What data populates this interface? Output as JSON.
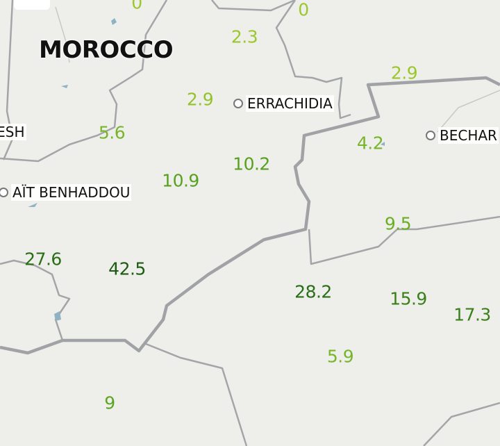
{
  "map": {
    "country_label": "MOROCCO",
    "cities": [
      {
        "name": "ERRACHIDIA"
      },
      {
        "name": "BECHAR"
      },
      {
        "name": "AÏT BENHADDOU"
      },
      {
        "name": "KESH"
      }
    ],
    "values": [
      "0",
      "0",
      "2.3",
      "2.9",
      "2.9",
      "5.6",
      "4.2",
      "10.2",
      "10.9",
      "9.5",
      "27.6",
      "42.5",
      "28.2",
      "15.9",
      "17.3",
      "5.9",
      "9"
    ],
    "colors": {
      "background": "#eeefea",
      "low": "#9cc72c",
      "medium": "#6aae24",
      "mid_high": "#4c9420",
      "high": "#2a6e18",
      "very_high": "#1d5a12",
      "border": "#a3a5a8"
    }
  }
}
